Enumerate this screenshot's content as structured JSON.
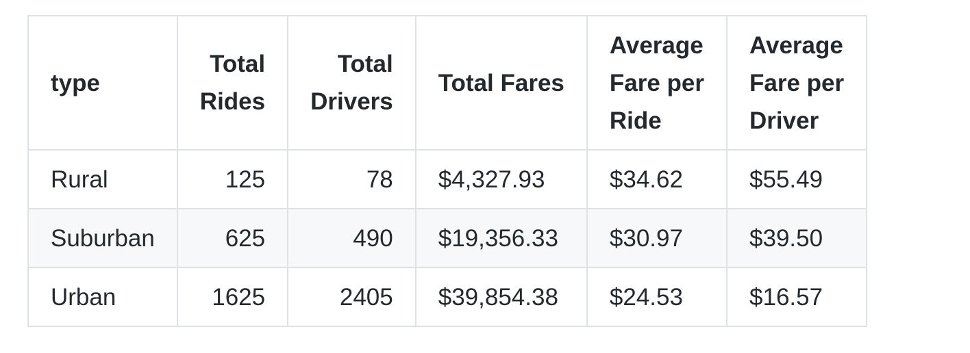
{
  "table": {
    "headers": [
      {
        "lines": [
          "type"
        ],
        "align": "left"
      },
      {
        "lines": [
          "Total",
          "Rides"
        ],
        "align": "right"
      },
      {
        "lines": [
          "Total",
          "Drivers"
        ],
        "align": "right"
      },
      {
        "lines": [
          "Total Fares"
        ],
        "align": "left"
      },
      {
        "lines": [
          "Average",
          "Fare per",
          "Ride"
        ],
        "align": "left"
      },
      {
        "lines": [
          "Average",
          "Fare per",
          "Driver"
        ],
        "align": "left"
      }
    ],
    "rows": [
      [
        "Rural",
        "125",
        "78",
        "$4,327.93",
        "$34.62",
        "$55.49"
      ],
      [
        "Suburban",
        "625",
        "490",
        "$19,356.33",
        "$30.97",
        "$39.50"
      ],
      [
        "Urban",
        "1625",
        "2405",
        "$39,854.38",
        "$24.53",
        "$16.57"
      ]
    ]
  },
  "colors": {
    "text": "#24292e",
    "border": "#dfe2e5",
    "alt_row_bg": "#f6f8fa",
    "background": "#ffffff"
  }
}
